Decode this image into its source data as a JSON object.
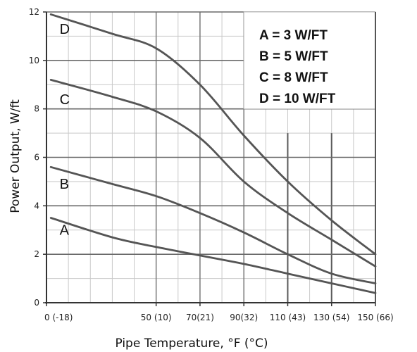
{
  "chart_data": {
    "type": "line",
    "xlabel": "Pipe Temperature, °F (°C)",
    "ylabel": "Power Output, W/ft",
    "xlim": [
      0,
      150
    ],
    "ylim": [
      0,
      12
    ],
    "x_ticks": [
      0,
      50,
      70,
      90,
      110,
      130,
      150
    ],
    "x_tick_labels": [
      "0 (-18)",
      "50 (10)",
      "70(21)",
      "90(32)",
      "110 (43)",
      "130 (54)",
      "150 (66)"
    ],
    "y_ticks": [
      0,
      2,
      4,
      6,
      8,
      10,
      12
    ],
    "y_tick_labels": [
      "0",
      "2",
      "4",
      "6",
      "8",
      "10",
      "12"
    ],
    "grid": true,
    "series": [
      {
        "name": "A",
        "x": [
          2,
          30,
          50,
          70,
          90,
          110,
          130,
          150
        ],
        "values": [
          3.5,
          2.7,
          2.3,
          1.95,
          1.6,
          1.2,
          0.8,
          0.4
        ]
      },
      {
        "name": "B",
        "x": [
          2,
          30,
          50,
          70,
          90,
          110,
          130,
          150
        ],
        "values": [
          5.6,
          4.9,
          4.4,
          3.7,
          2.9,
          2.0,
          1.2,
          0.8
        ]
      },
      {
        "name": "C",
        "x": [
          2,
          30,
          50,
          70,
          90,
          110,
          130,
          150
        ],
        "values": [
          9.2,
          8.5,
          7.9,
          6.8,
          5.0,
          3.7,
          2.6,
          1.5
        ]
      },
      {
        "name": "D",
        "x": [
          2,
          30,
          50,
          70,
          90,
          110,
          130,
          150
        ],
        "values": [
          11.9,
          11.1,
          10.5,
          9.0,
          6.9,
          5.0,
          3.4,
          2.0
        ]
      }
    ],
    "legend": {
      "placement": "top-right",
      "entries": [
        "A = 3 W/FT",
        "B = 5 W/FT",
        "C = 8 W/FT",
        "D = 10 W/FT"
      ]
    }
  }
}
